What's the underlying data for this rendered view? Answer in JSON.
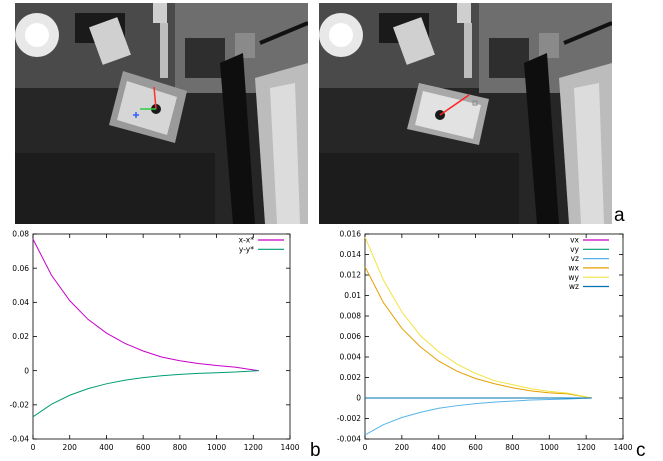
{
  "panel_labels": {
    "a": "a",
    "b": "b",
    "c": "c"
  },
  "chart_data": [
    {
      "type": "line",
      "id": "b",
      "title": "",
      "xlabel": "",
      "ylabel": "",
      "xlim": [
        0,
        1400
      ],
      "ylim": [
        -0.04,
        0.08
      ],
      "xticks": [
        0,
        200,
        400,
        600,
        800,
        1000,
        1200,
        1400
      ],
      "yticks": [
        -0.04,
        -0.02,
        0,
        0.02,
        0.04,
        0.06,
        0.08
      ],
      "legend_position": "top-right",
      "grid": false,
      "series": [
        {
          "name": "x-x*",
          "color": "#c800c8",
          "x": [
            0,
            100,
            200,
            300,
            400,
            500,
            600,
            700,
            800,
            900,
            1000,
            1100,
            1230
          ],
          "y": [
            0.077,
            0.056,
            0.041,
            0.03,
            0.022,
            0.016,
            0.0115,
            0.008,
            0.0058,
            0.0042,
            0.003,
            0.0021,
            0.0
          ]
        },
        {
          "name": "y-y*",
          "color": "#009e73",
          "x": [
            0,
            100,
            200,
            300,
            400,
            500,
            600,
            700,
            800,
            900,
            1000,
            1100,
            1230
          ],
          "y": [
            -0.027,
            -0.0197,
            -0.0144,
            -0.0105,
            -0.0077,
            -0.0056,
            -0.0041,
            -0.003,
            -0.0022,
            -0.0016,
            -0.0012,
            -0.0008,
            0.0
          ]
        }
      ]
    },
    {
      "type": "line",
      "id": "c",
      "title": "",
      "xlabel": "",
      "ylabel": "",
      "xlim": [
        0,
        1400
      ],
      "ylim": [
        -0.004,
        0.016
      ],
      "xticks": [
        0,
        200,
        400,
        600,
        800,
        1000,
        1200,
        1400
      ],
      "yticks": [
        -0.004,
        -0.002,
        0,
        0.002,
        0.004,
        0.006,
        0.008,
        0.01,
        0.012,
        0.014,
        0.016
      ],
      "legend_position": "top-right",
      "grid": false,
      "series": [
        {
          "name": "vx",
          "color": "#c800c8",
          "x": [
            0,
            1230
          ],
          "y": [
            0,
            0
          ]
        },
        {
          "name": "vy",
          "color": "#009e73",
          "x": [
            0,
            1230
          ],
          "y": [
            0,
            0
          ]
        },
        {
          "name": "vz",
          "color": "#56b4e9",
          "x": [
            0,
            100,
            200,
            300,
            400,
            500,
            600,
            700,
            800,
            900,
            1000,
            1100,
            1230
          ],
          "y": [
            -0.0036,
            -0.0026,
            -0.0019,
            -0.0014,
            -0.001,
            -0.00075,
            -0.00055,
            -0.0004,
            -0.0003,
            -0.0002,
            -0.00015,
            -0.0001,
            0.0
          ]
        },
        {
          "name": "wx",
          "color": "#e69f00",
          "x": [
            0,
            100,
            200,
            300,
            400,
            500,
            600,
            700,
            800,
            900,
            1000,
            1100,
            1230
          ],
          "y": [
            0.0128,
            0.0093,
            0.0068,
            0.005,
            0.0036,
            0.0026,
            0.0019,
            0.0014,
            0.001,
            0.0007,
            0.0005,
            0.0004,
            0.0
          ]
        },
        {
          "name": "wy",
          "color": "#f0e442",
          "x": [
            0,
            100,
            200,
            300,
            400,
            500,
            600,
            700,
            800,
            900,
            1000,
            1100,
            1230
          ],
          "y": [
            0.0157,
            0.0115,
            0.0084,
            0.0061,
            0.0045,
            0.0033,
            0.0024,
            0.0017,
            0.0013,
            0.0009,
            0.00065,
            0.00047,
            0.0
          ]
        },
        {
          "name": "wz",
          "color": "#0072b2",
          "x": [
            0,
            1230
          ],
          "y": [
            0,
            0
          ]
        }
      ]
    }
  ]
}
